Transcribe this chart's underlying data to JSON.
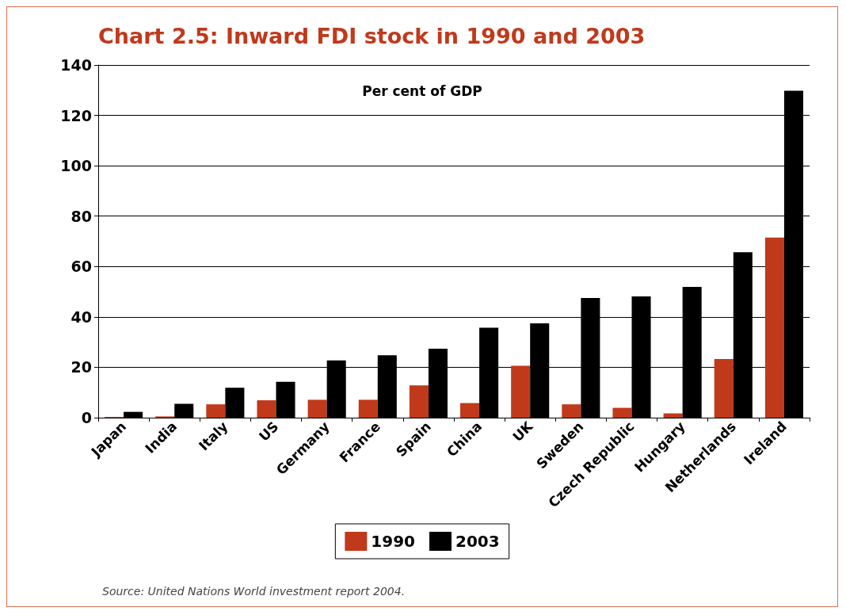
{
  "chart_data": {
    "type": "bar",
    "title": "Chart 2.5: Inward FDI stock in 1990 and 2003",
    "subtitle": "Per cent of GDP",
    "categories": [
      "Japan",
      "India",
      "Italy",
      "US",
      "Germany",
      "France",
      "Spain",
      "China",
      "UK",
      "Sweden",
      "Czech Republic",
      "Hungary",
      "Netherlands",
      "Ireland"
    ],
    "series": [
      {
        "name": "1990",
        "color": "#c1391b",
        "values": [
          0.3,
          0.5,
          5.3,
          6.9,
          7.1,
          7.1,
          12.8,
          5.8,
          20.6,
          5.3,
          3.9,
          1.7,
          23.3,
          71.5
        ]
      },
      {
        "name": "2003",
        "color": "#000000",
        "values": [
          2.3,
          5.5,
          11.9,
          14.2,
          22.7,
          24.8,
          27.4,
          35.7,
          37.4,
          47.5,
          48.1,
          51.9,
          65.7,
          129.8
        ]
      }
    ],
    "ylim": [
      0,
      140
    ],
    "yticks": [
      0,
      20,
      40,
      60,
      80,
      100,
      120,
      140
    ],
    "grid": "y",
    "legend": "bottom",
    "annotations": [
      "Source: United Nations World investment report 2004."
    ]
  }
}
